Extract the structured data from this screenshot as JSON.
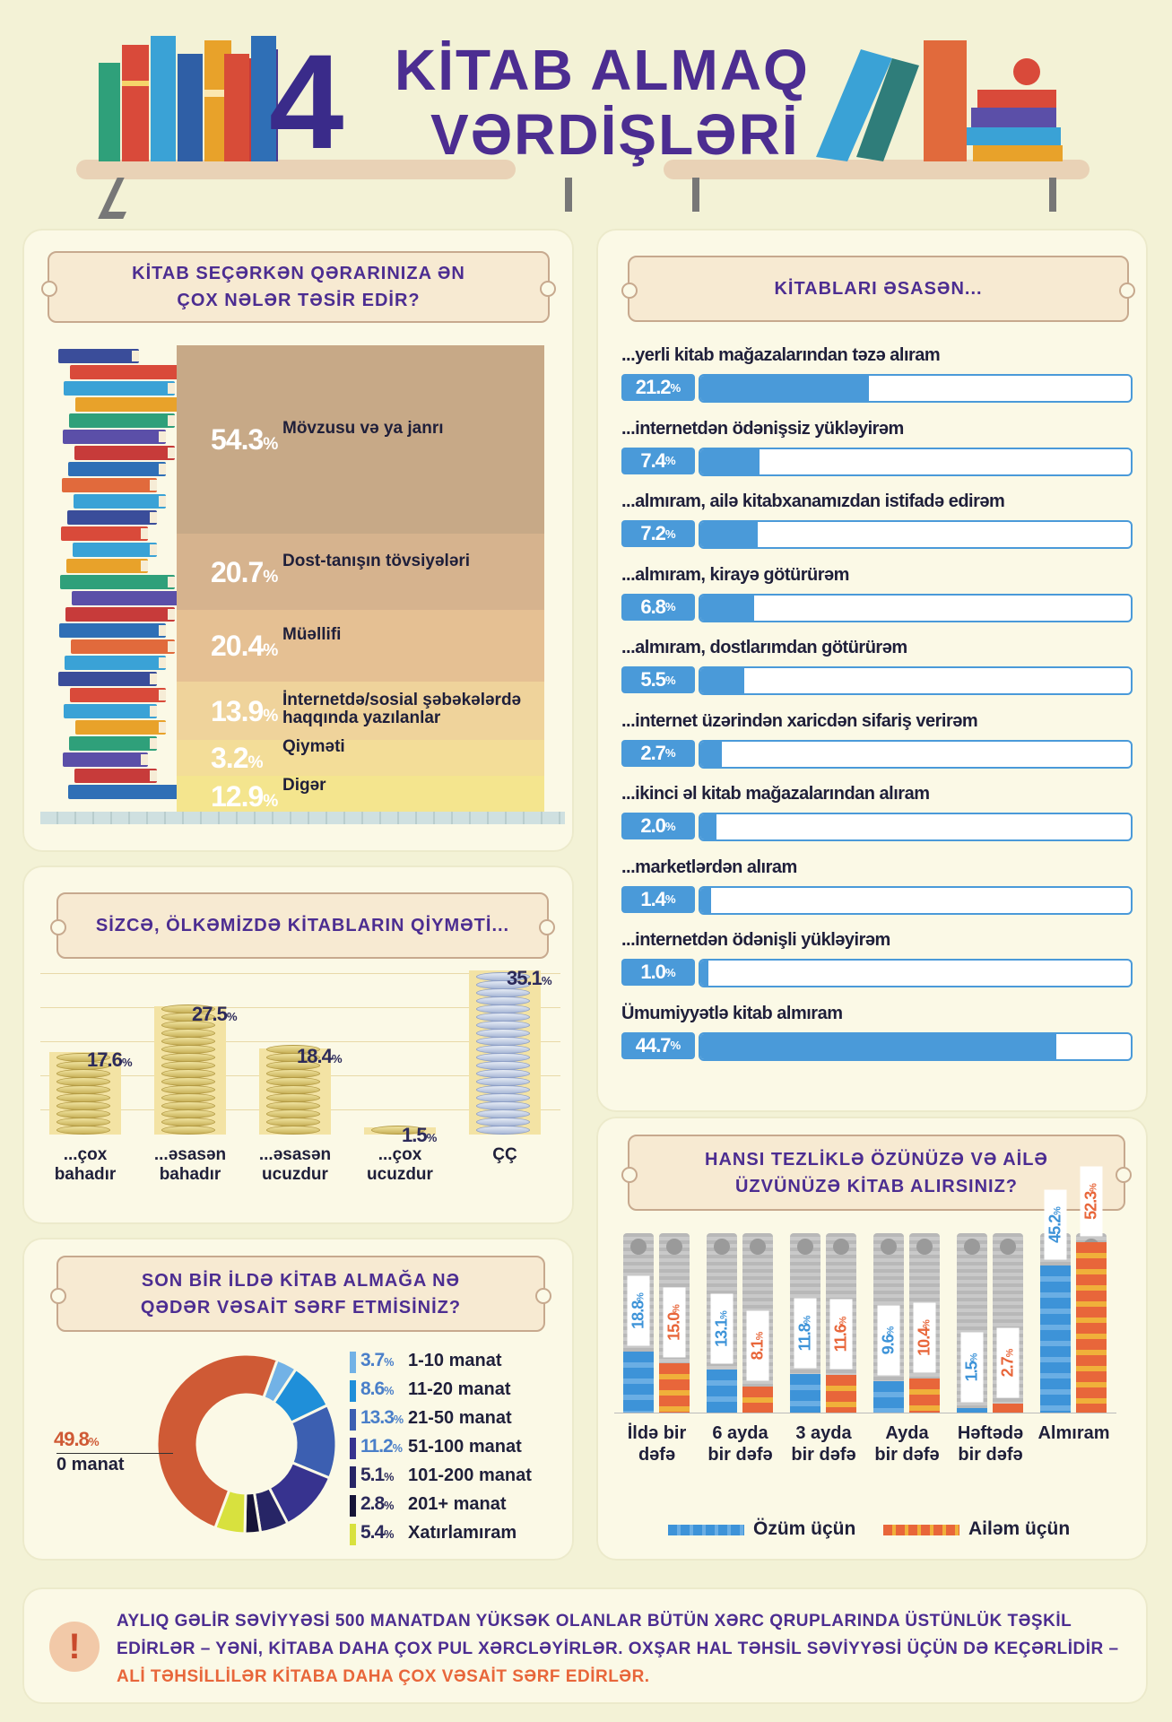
{
  "header": {
    "number": "4",
    "title_line1": "KİTAB ALMAQ",
    "title_line2": "VƏRDİŞLƏRİ"
  },
  "influence": {
    "title": "KİTAB SEÇƏRKƏN QƏRARINIZA ƏN ÇOX NƏLƏR TƏSİR EDİR?",
    "items": [
      {
        "value": "54.3",
        "label": "Mövzusu və ya janrı",
        "color": "#c7a987"
      },
      {
        "value": "20.7",
        "label": "Dost-tanışın tövsiyələri",
        "color": "#d6b38e"
      },
      {
        "value": "20.4",
        "label": "Müəllifi",
        "color": "#e5c093"
      },
      {
        "value": "13.9",
        "label": "İnternetdə/sosial şəbəkələrdə haqqında yazılanlar",
        "color": "#efd39b"
      },
      {
        "value": "3.2",
        "label": "Qiyməti",
        "color": "#f3dd98"
      },
      {
        "value": "12.9",
        "label": "Digər",
        "color": "#f4e58e"
      }
    ]
  },
  "sources": {
    "title": "KİTABLARI ƏSASƏN...",
    "items": [
      {
        "label": "...yerli kitab mağazalarından təzə alıram",
        "value": "21.2",
        "pct": 21.2
      },
      {
        "label": "...internetdən ödənişsiz yükləyirəm",
        "value": "7.4",
        "pct": 7.4
      },
      {
        "label": "...almıram, ailə kitabxanamızdan istifadə edirəm",
        "value": "7.2",
        "pct": 7.2
      },
      {
        "label": "...almıram, kirayə götürürəm",
        "value": "6.8",
        "pct": 6.8
      },
      {
        "label": "...almıram, dostlarımdan götürürəm",
        "value": "5.5",
        "pct": 5.5
      },
      {
        "label": "...internet üzərindən xaricdən sifariş verirəm",
        "value": "2.7",
        "pct": 2.7
      },
      {
        "label": "...ikinci əl kitab mağazalarından alıram",
        "value": "2.0",
        "pct": 2.0
      },
      {
        "label": "...marketlərdən alıram",
        "value": "1.4",
        "pct": 1.4
      },
      {
        "label": "...internetdən ödənişli yükləyirəm",
        "value": "1.0",
        "pct": 1.0
      },
      {
        "label": "Ümumiyyətlə kitab almıram",
        "value": "44.7",
        "pct": 44.7
      }
    ]
  },
  "price": {
    "title": "SİZCƏ, ÖLKƏMİZDƏ KİTABLARIN QİYMƏTİ...",
    "items": [
      {
        "value": "17.6",
        "label1": "...çox",
        "label2": "bahadır",
        "pct": 17.6
      },
      {
        "value": "27.5",
        "label1": "...əsasən",
        "label2": "bahadır",
        "pct": 27.5
      },
      {
        "value": "18.4",
        "label1": "...əsasən",
        "label2": "ucuzdur",
        "pct": 18.4
      },
      {
        "value": "1.5",
        "label1": "...çox",
        "label2": "ucuzdur",
        "pct": 1.5
      },
      {
        "value": "35.1",
        "label1": "ÇÇ",
        "label2": "",
        "pct": 35.1
      }
    ]
  },
  "spend": {
    "title": "SON BİR İLDƏ KİTAB ALMAĞA NƏ QƏDƏR VƏSAİT SƏRF ETMİSİNİZ?",
    "zero_value": "49.8",
    "zero_label": "0 manat",
    "zero_color": "#cf5a35",
    "items": [
      {
        "value": "3.7",
        "label": "1-10 manat",
        "color": "#72b2e6"
      },
      {
        "value": "8.6",
        "label": "11-20 manat",
        "color": "#1f8fd9"
      },
      {
        "value": "13.3",
        "label": "21-50 manat",
        "color": "#3c5fb1"
      },
      {
        "value": "11.2",
        "label": "51-100 manat",
        "color": "#37338f"
      },
      {
        "value": "5.1",
        "label": "101-200 manat",
        "color": "#272566"
      },
      {
        "value": "2.8",
        "label": "201+ manat",
        "color": "#161437"
      },
      {
        "value": "5.4",
        "label": "Xatırlamıram",
        "color": "#d8e13e"
      }
    ]
  },
  "frequency": {
    "title": "HANSI TEZLİKLƏ ÖZÜNÜZƏ VƏ AİLƏ ÜZVÜNÜZƏ KİTAB ALIRSINIZ?",
    "groups": [
      {
        "label1": "İldə bir",
        "label2": "dəfə",
        "self": "18.8",
        "family": "15.0",
        "self_pct": 18.8,
        "family_pct": 15.0
      },
      {
        "label1": "6 ayda",
        "label2": "bir dəfə",
        "self": "13.1",
        "family": "8.1",
        "self_pct": 13.1,
        "family_pct": 8.1
      },
      {
        "label1": "3 ayda",
        "label2": "bir dəfə",
        "self": "11.8",
        "family": "11.6",
        "self_pct": 11.8,
        "family_pct": 11.6
      },
      {
        "label1": "Ayda",
        "label2": "bir dəfə",
        "self": "9.6",
        "family": "10.4",
        "self_pct": 9.6,
        "family_pct": 10.4
      },
      {
        "label1": "Həftədə",
        "label2": "bir dəfə",
        "self": "1.5",
        "family": "2.7",
        "self_pct": 1.5,
        "family_pct": 2.7
      },
      {
        "label1": "Almıram",
        "label2": "",
        "self": "45.2",
        "family": "52.3",
        "self_pct": 45.2,
        "family_pct": 52.3
      }
    ],
    "legend_self": "Özüm üçün",
    "legend_family": "Ailəm üçün",
    "self_color": "#3d93d8",
    "family_color": "#e8663a"
  },
  "note": {
    "icon": "!",
    "text1": "AYLIQ GƏLİR SƏVİYYƏSİ 500 MANATDAN YÜKSƏK OLANLAR BÜTÜN XƏRC QRUPLARINDA ÜSTÜNLÜK TƏŞKİL EDİRLƏR – YƏNİ, KİTABA DAHA ÇOX PUL XƏRCLƏYİRLƏR. OXŞAR HAL TƏHSİL SƏVİYYƏSİ ÜÇÜN DƏ KEÇƏRLİDİR – ",
    "text2": "ALİ TƏHSİLLİLƏR KİTABA DAHA ÇOX VƏSAİT SƏRF EDİRLƏR."
  }
}
